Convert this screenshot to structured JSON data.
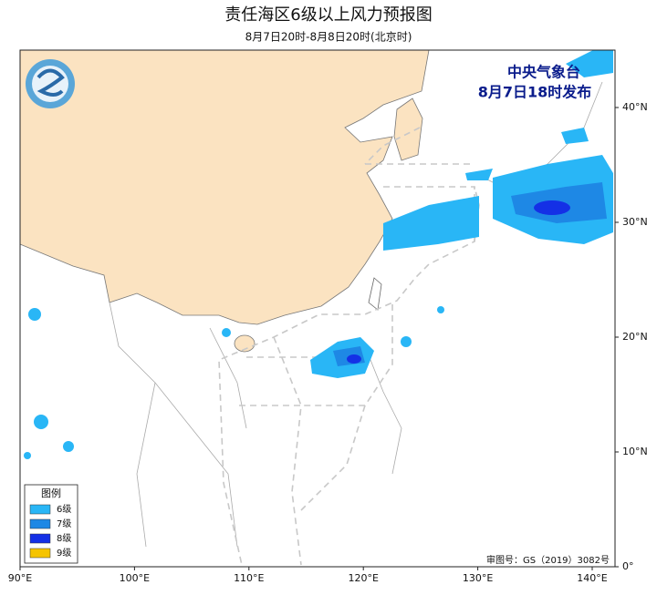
{
  "header": {
    "title": "责任海区6级以上风力预报图",
    "subtitle": "8月7日20时-8月8日20时(北京时)"
  },
  "map": {
    "agency": "中央气象台",
    "issued": "8月7日18时发布",
    "x_axis": [
      "90°E",
      "100°E",
      "110°E",
      "120°E",
      "130°E",
      "140°E"
    ],
    "y_axis": [
      "0°",
      "10°N",
      "20°N",
      "30°N",
      "40°N"
    ],
    "approval": "审图号：GS（2019）3082号"
  },
  "legend": {
    "title": "图例",
    "items": [
      {
        "label": "6级",
        "color": "#29b6f6"
      },
      {
        "label": "7级",
        "color": "#1e88e5"
      },
      {
        "label": "8级",
        "color": "#1430e6"
      },
      {
        "label": "9级",
        "color": "#f5c400"
      }
    ]
  }
}
